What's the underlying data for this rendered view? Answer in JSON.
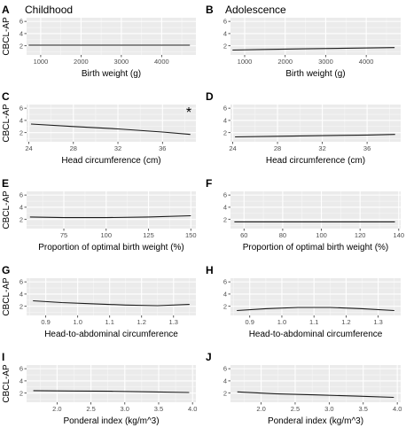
{
  "chart_data": [
    {
      "type": "line",
      "panel_label": "A",
      "title": "Childhood",
      "xlabel": "Birth weight (g)",
      "ylabel": "CBCL-AP",
      "xlim": [
        650,
        4850
      ],
      "ylim": [
        0.5,
        6.6
      ],
      "xticks": [
        1000,
        2000,
        3000,
        4000
      ],
      "yticks": [
        2,
        4,
        6
      ],
      "grid": true,
      "annotation": "",
      "series": [
        {
          "x": [
            700,
            1500,
            2500,
            3500,
            4700
          ],
          "y": [
            2.1,
            2.1,
            2.1,
            2.1,
            2.1
          ]
        }
      ]
    },
    {
      "type": "line",
      "panel_label": "B",
      "title": "Adolescence",
      "xlabel": "Birth weight (g)",
      "ylabel": "CBCL-AP",
      "xlim": [
        650,
        4850
      ],
      "ylim": [
        0.5,
        6.6
      ],
      "xticks": [
        1000,
        2000,
        3000,
        4000
      ],
      "yticks": [
        2,
        4,
        6
      ],
      "grid": true,
      "annotation": "",
      "series": [
        {
          "x": [
            700,
            1500,
            2500,
            3500,
            4700
          ],
          "y": [
            1.3,
            1.4,
            1.5,
            1.6,
            1.7
          ]
        }
      ]
    },
    {
      "type": "line",
      "panel_label": "C",
      "title": "",
      "xlabel": "Head circumference (cm)",
      "ylabel": "CBCL-AP",
      "xlim": [
        23.8,
        39.0
      ],
      "ylim": [
        0.5,
        6.6
      ],
      "xticks": [
        24,
        28,
        32,
        36
      ],
      "yticks": [
        2,
        4,
        6
      ],
      "grid": true,
      "annotation": "*",
      "series": [
        {
          "x": [
            24.2,
            28,
            32,
            36,
            38.5
          ],
          "y": [
            3.4,
            3.0,
            2.6,
            2.1,
            1.7
          ]
        }
      ]
    },
    {
      "type": "line",
      "panel_label": "D",
      "title": "",
      "xlabel": "Head circumference (cm)",
      "ylabel": "CBCL-AP",
      "xlim": [
        23.8,
        39.0
      ],
      "ylim": [
        0.5,
        6.6
      ],
      "xticks": [
        24,
        28,
        32,
        36
      ],
      "yticks": [
        2,
        4,
        6
      ],
      "grid": true,
      "annotation": "",
      "series": [
        {
          "x": [
            24.2,
            28,
            32,
            36,
            38.5
          ],
          "y": [
            1.3,
            1.4,
            1.5,
            1.6,
            1.7
          ]
        }
      ]
    },
    {
      "type": "line",
      "panel_label": "E",
      "title": "",
      "xlabel": "Proportion of optimal birth weight (%)",
      "ylabel": "CBCL-AP",
      "xlim": [
        53,
        153
      ],
      "ylim": [
        0.5,
        6.6
      ],
      "xticks": [
        75,
        100,
        125,
        150
      ],
      "yticks": [
        2,
        4,
        6
      ],
      "grid": true,
      "annotation": "",
      "series": [
        {
          "x": [
            55,
            75,
            100,
            125,
            150
          ],
          "y": [
            2.4,
            2.3,
            2.3,
            2.4,
            2.6
          ]
        }
      ]
    },
    {
      "type": "line",
      "panel_label": "F",
      "title": "",
      "xlabel": "Proportion of optimal birth weight (%)",
      "ylabel": "CBCL-AP",
      "xlim": [
        53,
        141
      ],
      "ylim": [
        0.5,
        6.6
      ],
      "xticks": [
        60,
        80,
        100,
        120,
        140
      ],
      "yticks": [
        2,
        4,
        6
      ],
      "grid": true,
      "annotation": "",
      "series": [
        {
          "x": [
            55,
            80,
            100,
            120,
            138
          ],
          "y": [
            1.6,
            1.6,
            1.6,
            1.6,
            1.6
          ]
        }
      ]
    },
    {
      "type": "line",
      "panel_label": "G",
      "title": "",
      "xlabel": "Head-to-abdominal circumference",
      "ylabel": "CBCL-AP",
      "xlim": [
        0.84,
        1.37
      ],
      "ylim": [
        0.5,
        6.6
      ],
      "xticks": [
        0.9,
        1.0,
        1.1,
        1.2,
        1.3
      ],
      "yticks": [
        2,
        4,
        6
      ],
      "grid": true,
      "annotation": "",
      "series": [
        {
          "x": [
            0.86,
            0.95,
            1.05,
            1.15,
            1.25,
            1.35
          ],
          "y": [
            2.9,
            2.6,
            2.4,
            2.2,
            2.1,
            2.3
          ]
        }
      ]
    },
    {
      "type": "line",
      "panel_label": "H",
      "title": "",
      "xlabel": "Head-to-abdominal circumference",
      "ylabel": "CBCL-AP",
      "xlim": [
        0.84,
        1.37
      ],
      "ylim": [
        0.5,
        6.6
      ],
      "xticks": [
        0.9,
        1.0,
        1.1,
        1.2,
        1.3
      ],
      "yticks": [
        2,
        4,
        6
      ],
      "grid": true,
      "annotation": "",
      "series": [
        {
          "x": [
            0.86,
            0.95,
            1.05,
            1.15,
            1.25,
            1.35
          ],
          "y": [
            1.3,
            1.6,
            1.8,
            1.8,
            1.6,
            1.3
          ]
        }
      ]
    },
    {
      "type": "line",
      "panel_label": "I",
      "title": "",
      "xlabel": "Ponderal index (kg/m^3)",
      "ylabel": "CBCL-AP",
      "xlim": [
        1.55,
        4.05
      ],
      "ylim": [
        0.5,
        6.6
      ],
      "xticks": [
        2.0,
        2.5,
        3.0,
        3.5,
        4.0
      ],
      "yticks": [
        2,
        4,
        6
      ],
      "grid": true,
      "annotation": "",
      "series": [
        {
          "x": [
            1.65,
            2.2,
            2.8,
            3.4,
            3.95
          ],
          "y": [
            2.4,
            2.35,
            2.3,
            2.2,
            2.1
          ]
        }
      ]
    },
    {
      "type": "line",
      "panel_label": "J",
      "title": "",
      "xlabel": "Ponderal index (kg/m^3)",
      "ylabel": "CBCL-AP",
      "xlim": [
        1.55,
        4.05
      ],
      "ylim": [
        0.5,
        6.6
      ],
      "xticks": [
        2.0,
        2.5,
        3.0,
        3.5,
        4.0
      ],
      "yticks": [
        2,
        4,
        6
      ],
      "grid": true,
      "annotation": "",
      "series": [
        {
          "x": [
            1.65,
            2.2,
            2.8,
            3.4,
            3.95
          ],
          "y": [
            2.2,
            1.9,
            1.7,
            1.5,
            1.3
          ]
        }
      ]
    }
  ]
}
